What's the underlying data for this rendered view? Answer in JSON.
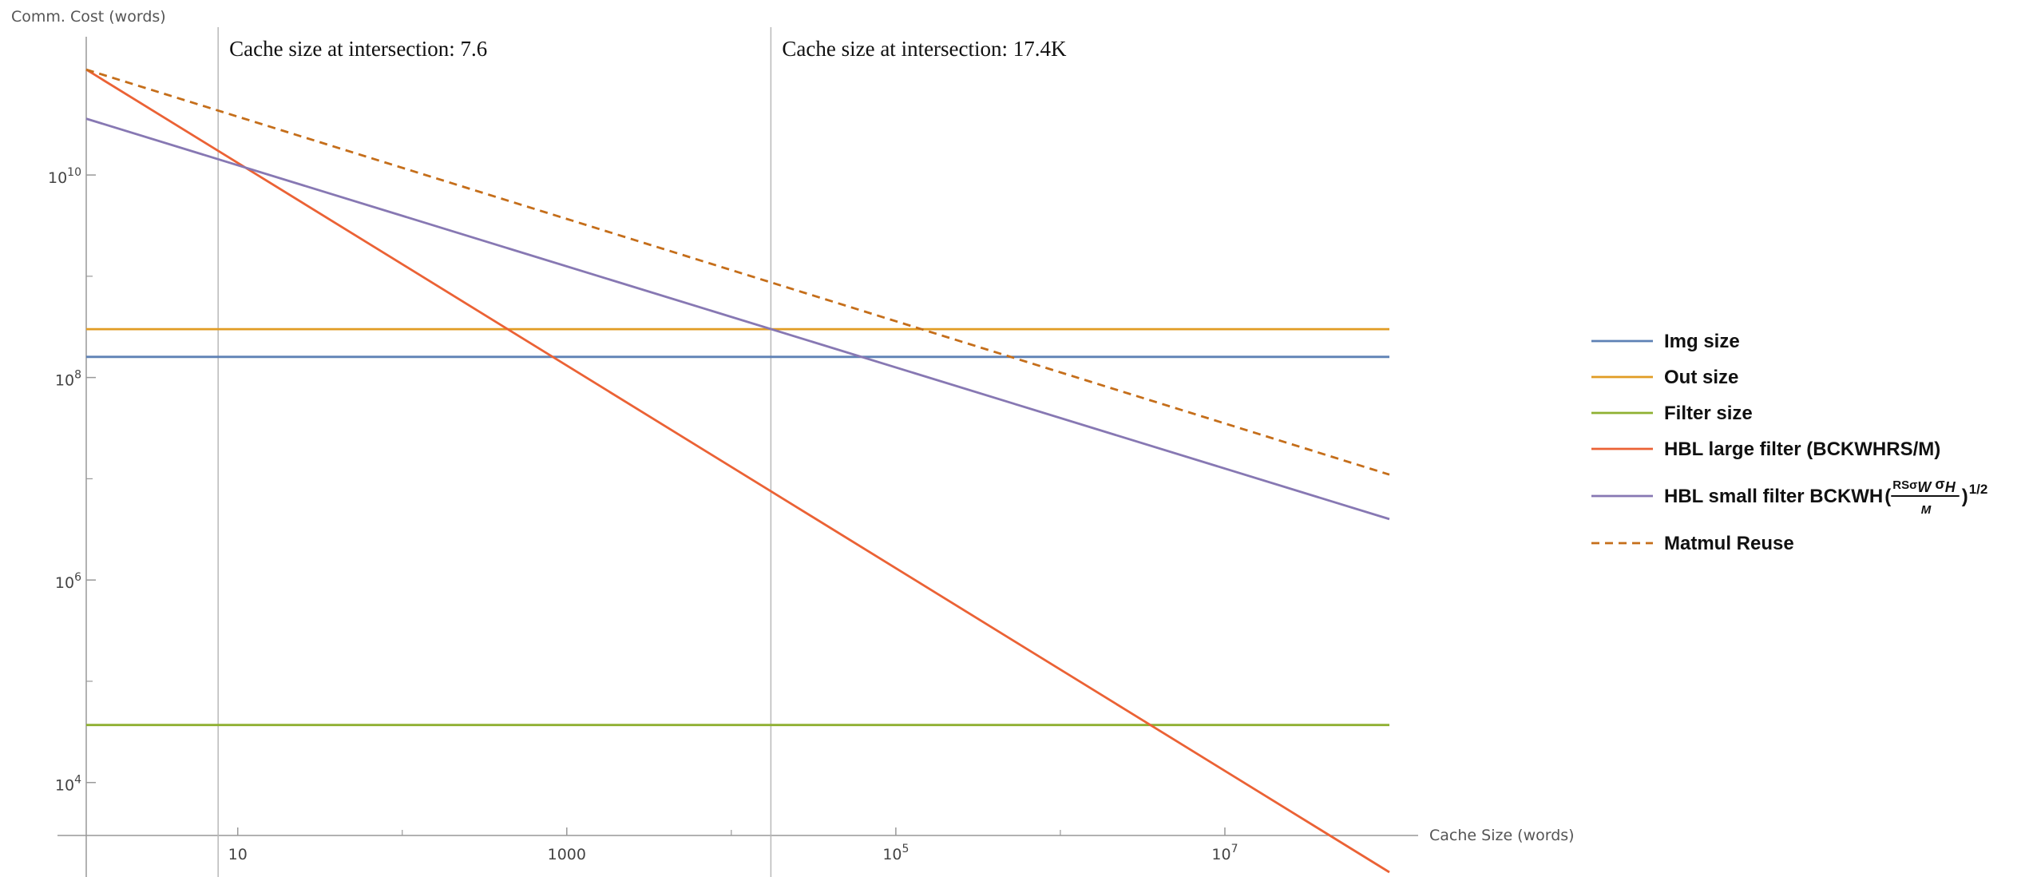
{
  "chart_data": {
    "type": "line",
    "xscale": "log10",
    "yscale": "log10",
    "xlim": [
      1.2,
      100000000
    ],
    "ylim": [
      3000,
      150000000000
    ],
    "xlabel": "Cache Size (words)",
    "ylabel": "Comm. Cost (words)",
    "x_ticks": [
      {
        "value": 10,
        "label": "10",
        "sup": ""
      },
      {
        "value": 1000,
        "label": "1000",
        "sup": ""
      },
      {
        "value": 100000,
        "label": "10",
        "sup": "5"
      },
      {
        "value": 10000000,
        "label": "10",
        "sup": "7"
      }
    ],
    "y_ticks": [
      {
        "value": 10000,
        "label": "10",
        "sup": "4"
      },
      {
        "value": 1000000,
        "label": "10",
        "sup": "6"
      },
      {
        "value": 100000000,
        "label": "10",
        "sup": "8"
      },
      {
        "value": 10000000000,
        "label": "10",
        "sup": "10"
      }
    ],
    "x_minor_ticks": [
      100,
      10000,
      1000000
    ],
    "y_minor_ticks": [
      100000,
      10000000,
      1000000000
    ],
    "vlines": [
      {
        "x": 7.6,
        "label": "Cache size at intersection: 7.6"
      },
      {
        "x": 17400,
        "label": "Cache size at intersection: 17.4K"
      }
    ],
    "series": [
      {
        "name": "Img size",
        "color": "#5E81B5",
        "dash": false,
        "points": [
          [
            1.2,
            160000000
          ],
          [
            100000000,
            160000000
          ]
        ]
      },
      {
        "name": "Out size",
        "color": "#E19C24",
        "dash": false,
        "points": [
          [
            1.2,
            300000000
          ],
          [
            100000000,
            300000000
          ]
        ]
      },
      {
        "name": "Filter size",
        "color": "#8FB032",
        "dash": false,
        "points": [
          [
            1.2,
            37000
          ],
          [
            100000000,
            37000
          ]
        ]
      },
      {
        "name": "HBL large filter (BCKWHRS/M)",
        "color": "#EB6235",
        "dash": false,
        "points": [
          [
            1.2,
            110000000000
          ],
          [
            100000000,
            1300
          ]
        ]
      },
      {
        "name": "HBL small filter BCKWH",
        "color": "#8778B3",
        "dash": false,
        "points": [
          [
            1.2,
            36000000000
          ],
          [
            100000000,
            4000000
          ]
        ]
      },
      {
        "name": "Matmul Reuse",
        "color": "#C56E1A",
        "dash": true,
        "points": [
          [
            1.2,
            110000000000
          ],
          [
            100000000,
            11000000
          ]
        ]
      }
    ],
    "legend_position": "right",
    "grid": false
  },
  "legend_math": {
    "numerator": "RSσ",
    "sub_w": "W",
    "sigma": "σ",
    "sub_h": "H",
    "denominator": "M",
    "open_paren": "(",
    "close_paren": ")",
    "exponent": "1/2"
  }
}
